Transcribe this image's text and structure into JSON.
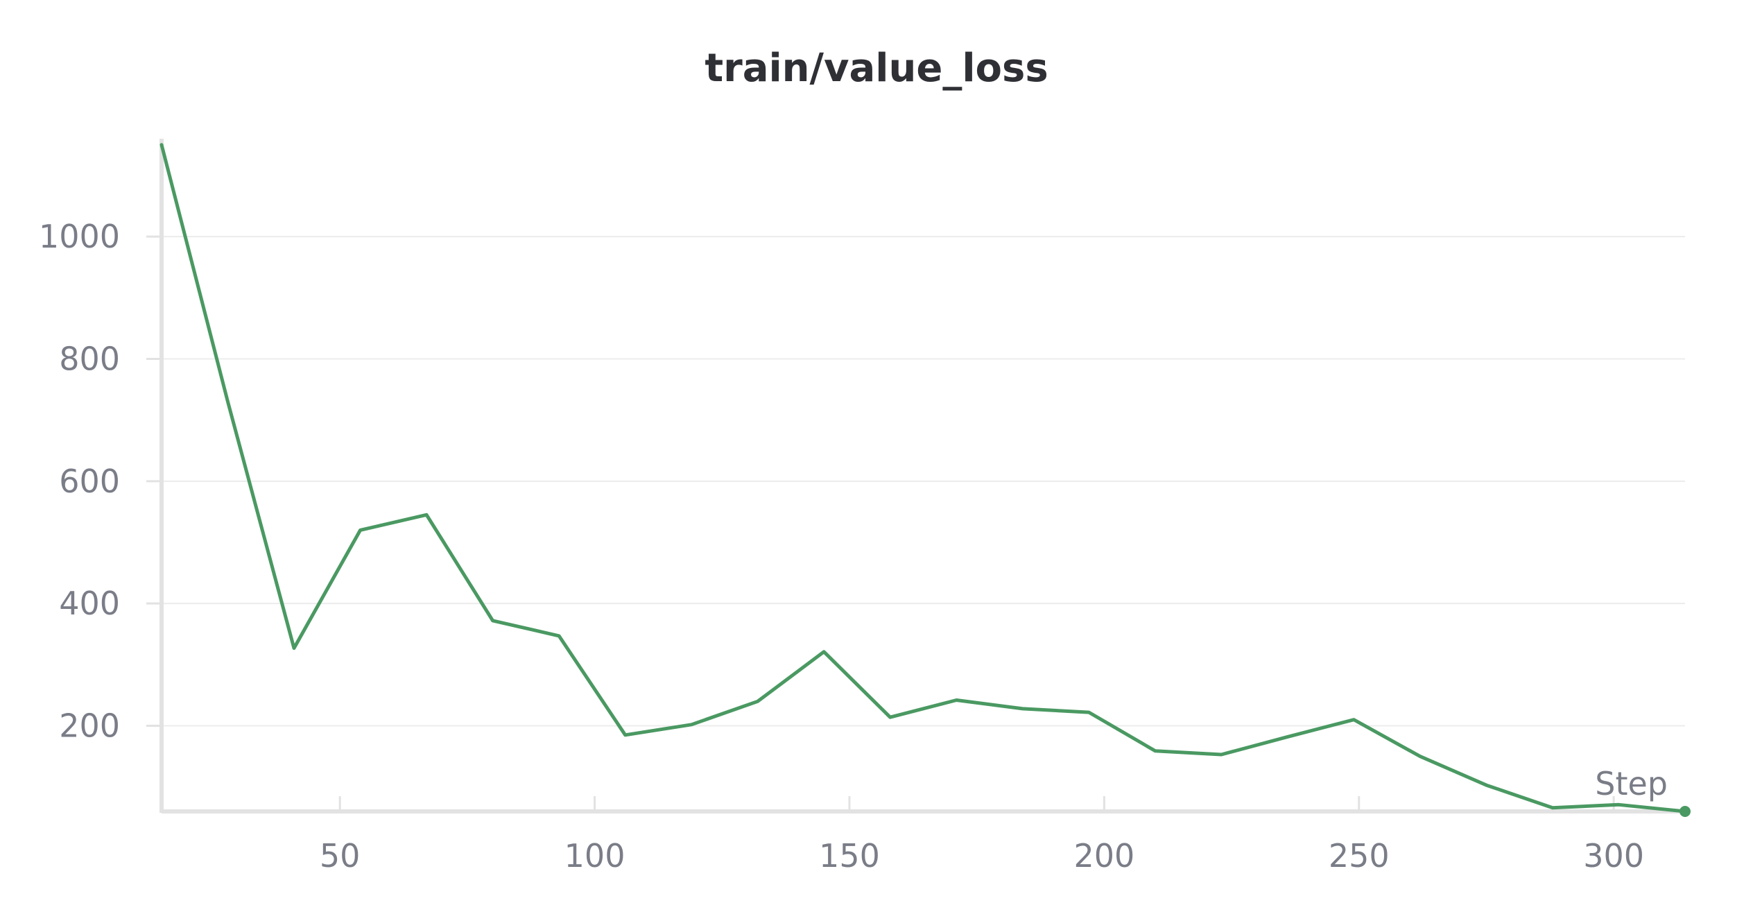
{
  "chart_data": {
    "type": "line",
    "title": "train/value_loss",
    "xlabel": "Step",
    "ylabel": "",
    "xlim": [
      15,
      314
    ],
    "ylim": [
      60,
      1160
    ],
    "xticks": [
      50,
      100,
      150,
      200,
      250,
      300
    ],
    "yticks": [
      200,
      400,
      600,
      800,
      1000
    ],
    "grid": true,
    "colors": {
      "line": "#4a9962",
      "grid": "#ececec",
      "axis": "#e2e2e2",
      "tick_text": "#7a7d87",
      "title": "#2f3035"
    },
    "series": [
      {
        "x": [
          15,
          28,
          41,
          54,
          67,
          80,
          93,
          106,
          119,
          132,
          145,
          158,
          171,
          184,
          197,
          210,
          223,
          236,
          249,
          262,
          275,
          288,
          301,
          314
        ],
        "y": [
          1150,
          730,
          327,
          520,
          545,
          372,
          347,
          185,
          202,
          240,
          321,
          214,
          242,
          228,
          222,
          159,
          153,
          182,
          210,
          150,
          103,
          66,
          71,
          60
        ]
      }
    ]
  }
}
